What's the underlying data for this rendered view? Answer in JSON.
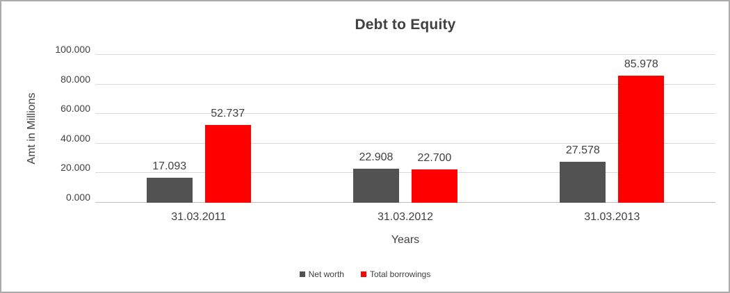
{
  "chart": {
    "title": "Debt to Equity",
    "y_axis_title": "Amt in Millions",
    "x_axis_title": "Years",
    "colors": {
      "net_worth": "#525252",
      "total_borrowings": "#ff0000",
      "gridline": "#d9d9d9",
      "zero_line": "#bfbfbf",
      "text": "#404040",
      "frame_border": "#ababab"
    }
  },
  "chart_data": {
    "type": "bar",
    "title": "Debt to Equity",
    "xlabel": "Years",
    "ylabel": "Amt in Millions",
    "categories": [
      "31.03.2011",
      "31.03.2012",
      "31.03.2013"
    ],
    "series": [
      {
        "name": "Net worth",
        "color": "#525252",
        "values": [
          17.093,
          22.908,
          27.578
        ],
        "labels": [
          "17.093",
          "22.908",
          "27.578"
        ]
      },
      {
        "name": "Total borrowings",
        "color": "#ff0000",
        "values": [
          52.737,
          22.7,
          85.978
        ],
        "labels": [
          "52.737",
          "22.700",
          "85.978"
        ]
      }
    ],
    "ylim": [
      0,
      100
    ],
    "yticks": [
      0,
      20,
      40,
      60,
      80,
      100
    ],
    "ytick_labels": [
      "0.000",
      "20.000",
      "40.000",
      "60.000",
      "80.000",
      "100.000"
    ],
    "grid": true,
    "legend_position": "bottom"
  }
}
